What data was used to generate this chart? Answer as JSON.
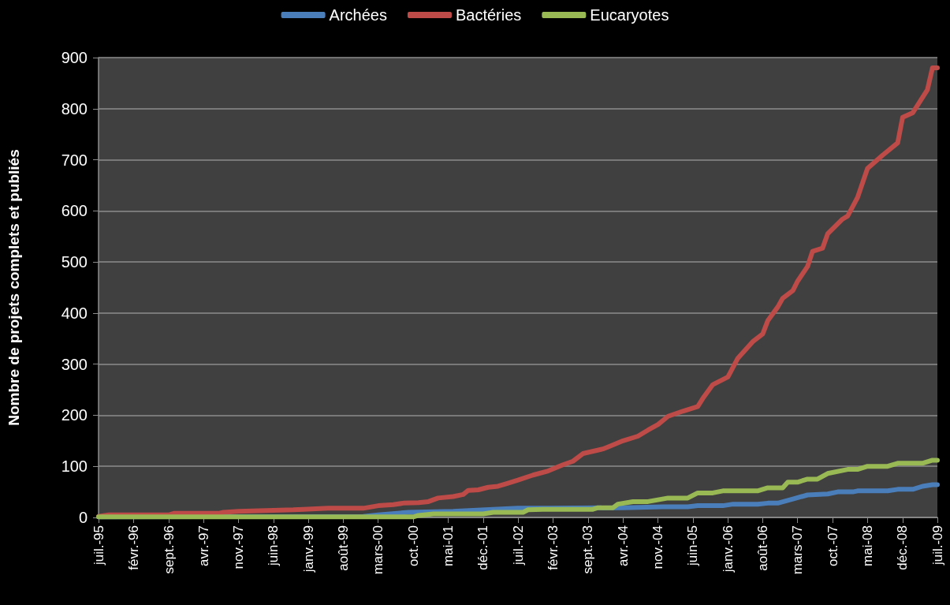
{
  "chart_data": {
    "type": "line",
    "ylabel": "Nombre de projets complets et publiés",
    "xlim": [
      "1995-07",
      "2009-07"
    ],
    "xticks": [
      {
        "value": "1995-07",
        "label": "juil.-95"
      },
      {
        "value": "1996-02",
        "label": "févr.-96"
      },
      {
        "value": "1996-09",
        "label": "sept.-96"
      },
      {
        "value": "1997-04",
        "label": "avr.-97"
      },
      {
        "value": "1997-11",
        "label": "nov.-97"
      },
      {
        "value": "1998-06",
        "label": "juin-98"
      },
      {
        "value": "1999-01",
        "label": "janv.-99"
      },
      {
        "value": "1999-08",
        "label": "août-99"
      },
      {
        "value": "2000-03",
        "label": "mars-00"
      },
      {
        "value": "2000-10",
        "label": "oct.-00"
      },
      {
        "value": "2001-05",
        "label": "mai-01"
      },
      {
        "value": "2001-12",
        "label": "déc.-01"
      },
      {
        "value": "2002-07",
        "label": "juil.-02"
      },
      {
        "value": "2003-02",
        "label": "févr.-03"
      },
      {
        "value": "2003-09",
        "label": "sept.-03"
      },
      {
        "value": "2004-04",
        "label": "avr.-04"
      },
      {
        "value": "2004-11",
        "label": "nov.-04"
      },
      {
        "value": "2005-06",
        "label": "juin-05"
      },
      {
        "value": "2006-01",
        "label": "janv.-06"
      },
      {
        "value": "2006-08",
        "label": "août-06"
      },
      {
        "value": "2007-03",
        "label": "mars-07"
      },
      {
        "value": "2007-10",
        "label": "oct.-07"
      },
      {
        "value": "2008-05",
        "label": "mai-08"
      },
      {
        "value": "2008-12",
        "label": "déc.-08"
      },
      {
        "value": "2009-07",
        "label": "juil.-09"
      }
    ],
    "ylim": [
      0,
      900
    ],
    "yticks": [
      0,
      100,
      200,
      300,
      400,
      500,
      600,
      700,
      800,
      900
    ],
    "grid": "y",
    "legend": "top",
    "marker": "none",
    "line_style": "solid",
    "series": [
      {
        "name": "Archées",
        "color": "#4a7ebb",
        "x": [
          "1995-07",
          "1999-12",
          "2000-03",
          "2000-09",
          "2001-06",
          "2001-10",
          "2002-02",
          "2002-07",
          "2003-01",
          "2004-04",
          "2004-12",
          "2005-05",
          "2005-07",
          "2005-12",
          "2006-02",
          "2006-07",
          "2006-09",
          "2006-11",
          "2007-02",
          "2007-05",
          "2007-09",
          "2007-11",
          "2008-02",
          "2008-03",
          "2008-09",
          "2008-11",
          "2009-02",
          "2009-04",
          "2009-06",
          "2009-07"
        ],
        "values": [
          1,
          2,
          5,
          10,
          12,
          14,
          16,
          18,
          18,
          19,
          21,
          21,
          23,
          23,
          26,
          26,
          28,
          28,
          36,
          44,
          46,
          50,
          50,
          52,
          52,
          55,
          55,
          61,
          64,
          64
        ]
      },
      {
        "name": "Bactéries",
        "color": "#be4b48",
        "x": [
          "1995-07",
          "1995-09",
          "1996-09",
          "1996-10",
          "1997-07",
          "1997-08",
          "1997-11",
          "1998-06",
          "1998-10",
          "1998-12",
          "1999-05",
          "1999-12",
          "2000-03",
          "2000-06",
          "2000-08",
          "2000-11",
          "2001-01",
          "2001-03",
          "2001-06",
          "2001-08",
          "2001-09",
          "2001-11",
          "2002-01",
          "2002-03",
          "2002-05",
          "2002-07",
          "2002-10",
          "2003-01",
          "2003-04",
          "2003-06",
          "2003-08",
          "2003-12",
          "2004-02",
          "2004-04",
          "2004-07",
          "2004-09",
          "2004-11",
          "2005-01",
          "2005-04",
          "2005-07",
          "2005-08",
          "2005-10",
          "2006-01",
          "2006-03",
          "2006-06",
          "2006-08",
          "2006-09",
          "2006-11",
          "2006-12",
          "2007-02",
          "2007-03",
          "2007-05",
          "2007-06",
          "2007-08",
          "2007-09",
          "2007-12",
          "2008-01",
          "2008-03",
          "2008-05",
          "2008-08",
          "2008-11",
          "2008-12",
          "2009-02",
          "2009-05",
          "2009-06",
          "2009-07"
        ],
        "values": [
          2,
          5,
          5,
          8,
          8,
          10,
          12,
          14,
          15,
          16,
          18,
          18,
          23,
          25,
          28,
          29,
          31,
          38,
          41,
          45,
          53,
          54,
          59,
          61,
          67,
          73,
          83,
          91,
          103,
          110,
          125,
          134,
          142,
          150,
          159,
          171,
          182,
          198,
          208,
          217,
          233,
          260,
          275,
          311,
          344,
          359,
          385,
          412,
          429,
          444,
          462,
          491,
          521,
          527,
          555,
          584,
          590,
          626,
          683,
          709,
          733,
          783,
          792,
          837,
          880,
          880
        ]
      },
      {
        "name": "Eucaryotes",
        "color": "#98b954",
        "x": [
          "1995-07",
          "2000-10",
          "2000-11",
          "2001-02",
          "2001-12",
          "2002-02",
          "2002-08",
          "2002-09",
          "2002-12",
          "2003-10",
          "2003-11",
          "2004-02",
          "2004-03",
          "2004-06",
          "2004-09",
          "2005-01",
          "2005-05",
          "2005-07",
          "2005-10",
          "2005-12",
          "2006-07",
          "2006-09",
          "2006-12",
          "2007-01",
          "2007-03",
          "2007-05",
          "2007-07",
          "2007-09",
          "2008-01",
          "2008-03",
          "2008-05",
          "2008-09",
          "2008-11",
          "2009-04",
          "2009-06",
          "2009-07"
        ],
        "values": [
          1,
          1,
          4,
          7,
          7,
          10,
          10,
          15,
          16,
          16,
          19,
          19,
          26,
          31,
          31,
          38,
          38,
          48,
          48,
          52,
          52,
          58,
          58,
          69,
          69,
          75,
          75,
          86,
          94,
          94,
          100,
          100,
          106,
          106,
          112,
          112
        ]
      }
    ]
  }
}
